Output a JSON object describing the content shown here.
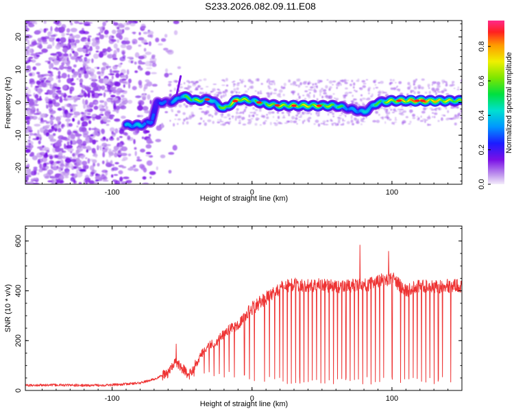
{
  "figure": {
    "title": "S233.2026.082.09.11.E08"
  },
  "chart_data": [
    {
      "type": "heatmap",
      "title": "S233.2026.082.09.11.E08",
      "xlabel": "Height of straight line (km)",
      "ylabel": "Frequency (Hz)",
      "xlim": [
        -162,
        150
      ],
      "ylim": [
        -25,
        25
      ],
      "x_ticks": [
        -100,
        0,
        100
      ],
      "y_ticks": [
        -20,
        -10,
        0,
        10,
        20
      ],
      "colorbar": {
        "label": "Normalized spectral amplitude",
        "range": [
          0,
          0.95
        ],
        "ticks": [
          "0.0",
          "0.2",
          "0.4",
          "0.6",
          "0.8"
        ],
        "tick_values": [
          0.0,
          0.2,
          0.4,
          0.6,
          0.8
        ]
      },
      "ridge": {
        "x": [
          -90,
          -80,
          -72,
          -68,
          -60,
          -55,
          -50,
          -40,
          -30,
          -20,
          -10,
          0,
          10,
          20,
          40,
          60,
          70,
          80,
          90,
          100,
          120,
          150
        ],
        "freq_hz": [
          -7,
          -7,
          -6,
          0,
          0,
          0.5,
          2,
          0.5,
          1,
          -2,
          1,
          0.5,
          -0.5,
          -1,
          -1,
          -1,
          -2,
          -3,
          0,
          0.5,
          0.5,
          0.5
        ],
        "amplitude": [
          0.45,
          0.5,
          0.35,
          0.4,
          0.35,
          0.45,
          0.5,
          0.65,
          0.5,
          0.6,
          0.75,
          0.55,
          0.6,
          0.65,
          0.7,
          0.6,
          0.4,
          0.5,
          0.55,
          0.7,
          0.85,
          0.6
        ]
      }
    },
    {
      "type": "line",
      "xlabel": "Height of straight line (km)",
      "ylabel": "SNR (10 * v/v)",
      "xlim": [
        -162,
        150
      ],
      "ylim": [
        0,
        660
      ],
      "x_ticks": [
        -100,
        0,
        100
      ],
      "y_ticks": [
        0,
        200,
        400,
        600
      ],
      "series": [
        {
          "name": "SNR",
          "color": "#ee3333",
          "x": [
            -162,
            -140,
            -120,
            -100,
            -80,
            -70,
            -60,
            -55,
            -50,
            -45,
            -40,
            -35,
            -30,
            -25,
            -20,
            -15,
            -10,
            -5,
            0,
            5,
            10,
            15,
            20,
            25,
            30,
            40,
            50,
            60,
            70,
            80,
            90,
            100,
            110,
            120,
            130,
            140,
            150
          ],
          "y": [
            20,
            22,
            20,
            22,
            30,
            45,
            70,
            120,
            90,
            60,
            110,
            160,
            180,
            200,
            230,
            250,
            260,
            300,
            330,
            350,
            370,
            390,
            410,
            420,
            425,
            420,
            425,
            415,
            420,
            420,
            440,
            450,
            400,
            420,
            415,
            420,
            420
          ]
        }
      ]
    }
  ]
}
